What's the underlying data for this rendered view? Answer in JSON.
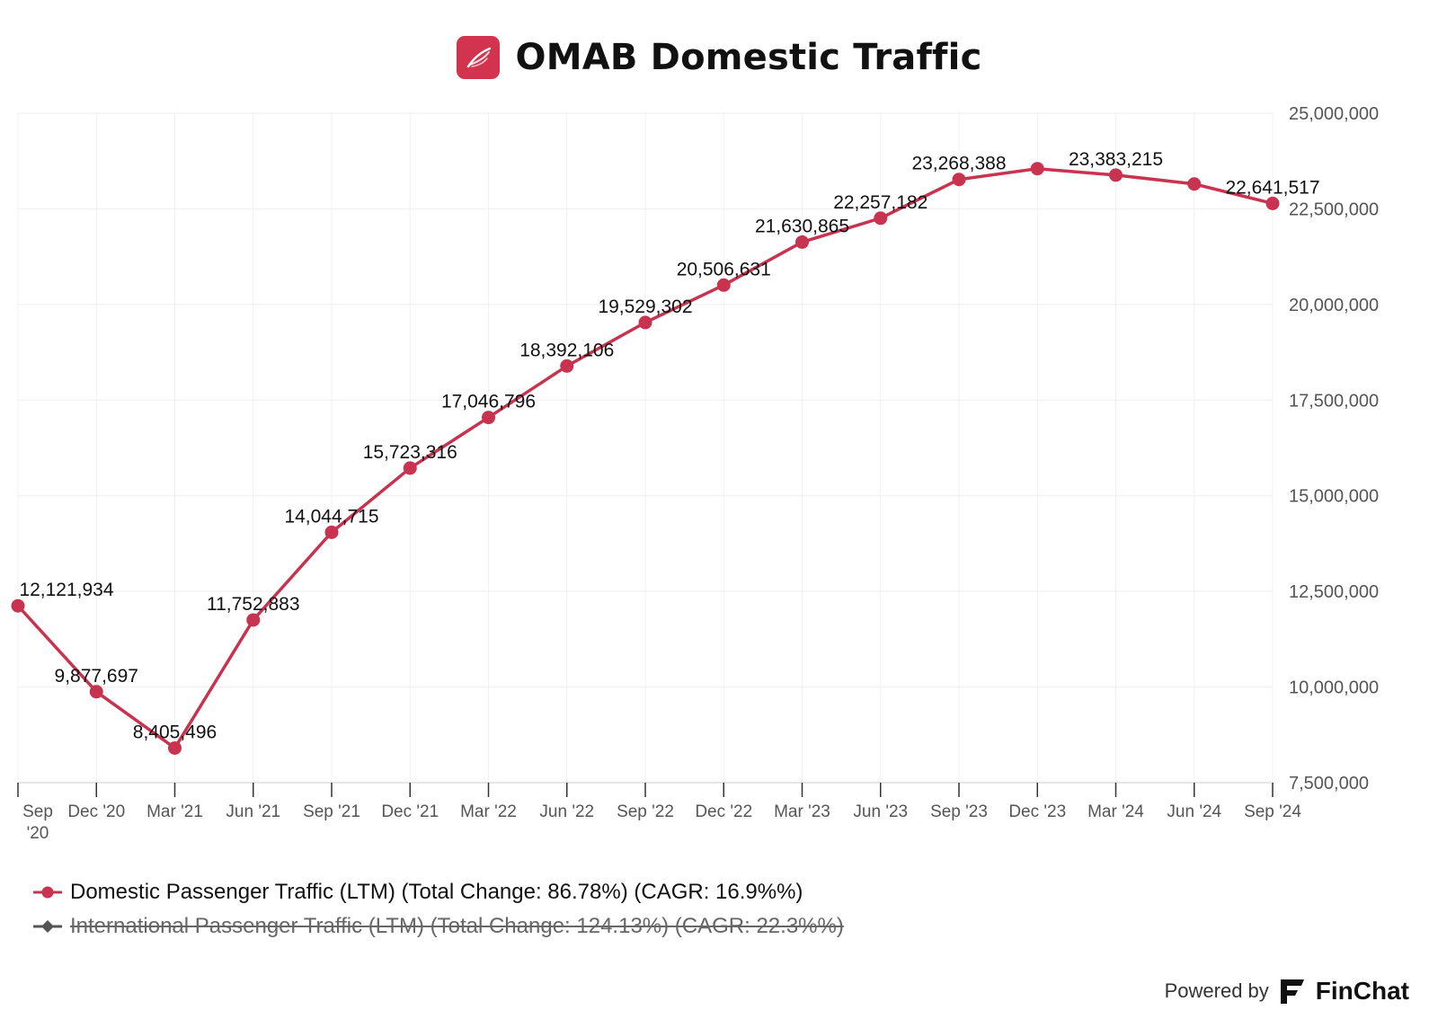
{
  "header": {
    "title": "OMAB Domestic Traffic",
    "logo_icon": "feather-icon",
    "logo_color": "#d2344f"
  },
  "chart_data": {
    "type": "line",
    "title": "OMAB Domestic Traffic",
    "xlabel": "",
    "ylabel": "",
    "categories": [
      "Sep '20",
      "Dec '20",
      "Mar '21",
      "Jun '21",
      "Sep '21",
      "Dec '21",
      "Mar '22",
      "Jun '22",
      "Sep '22",
      "Dec '22",
      "Mar '23",
      "Jun '23",
      "Sep '23",
      "Dec '23",
      "Mar '24",
      "Jun '24",
      "Sep '24"
    ],
    "y_axis_position": "right",
    "ylim": [
      7500000,
      25000000
    ],
    "yticks": [
      7500000,
      10000000,
      12500000,
      15000000,
      17500000,
      20000000,
      22500000,
      25000000
    ],
    "ytick_labels": [
      "7,500,000",
      "10,000,000",
      "12,500,000",
      "15,000,000",
      "17,500,000",
      "20,000,000",
      "22,500,000",
      "25,000,000"
    ],
    "grid": true,
    "legend_position": "bottom-left",
    "series": [
      {
        "name": "Domestic Passenger Traffic (LTM) (Total Change: 86.78%) (CAGR: 16.9%%)",
        "color": "#c8334f",
        "visible": true,
        "values": [
          12121934,
          9877697,
          8405496,
          11752883,
          14044715,
          15723316,
          17046796,
          18392106,
          19529302,
          20506631,
          21630865,
          22257182,
          23268388,
          23550000,
          23383215,
          23150000,
          22641517
        ],
        "labels": [
          "12,121,934",
          "9,877,697",
          "8,405,496",
          "11,752,883",
          "14,044,715",
          "15,723,316",
          "17,046,796",
          "18,392,106",
          "19,529,302",
          "20,506,631",
          "21,630,865",
          "22,257,182",
          "23,268,388",
          "",
          "23,383,215",
          "",
          "22,641,517"
        ]
      },
      {
        "name": "International Passenger Traffic (LTM) (Total Change: 124.13%) (CAGR: 22.3%%)",
        "color": "#555555",
        "visible": false
      }
    ]
  },
  "footer": {
    "powered_by": "Powered by",
    "brand": "FinChat",
    "brand_icon": "finchat-logo-icon"
  }
}
